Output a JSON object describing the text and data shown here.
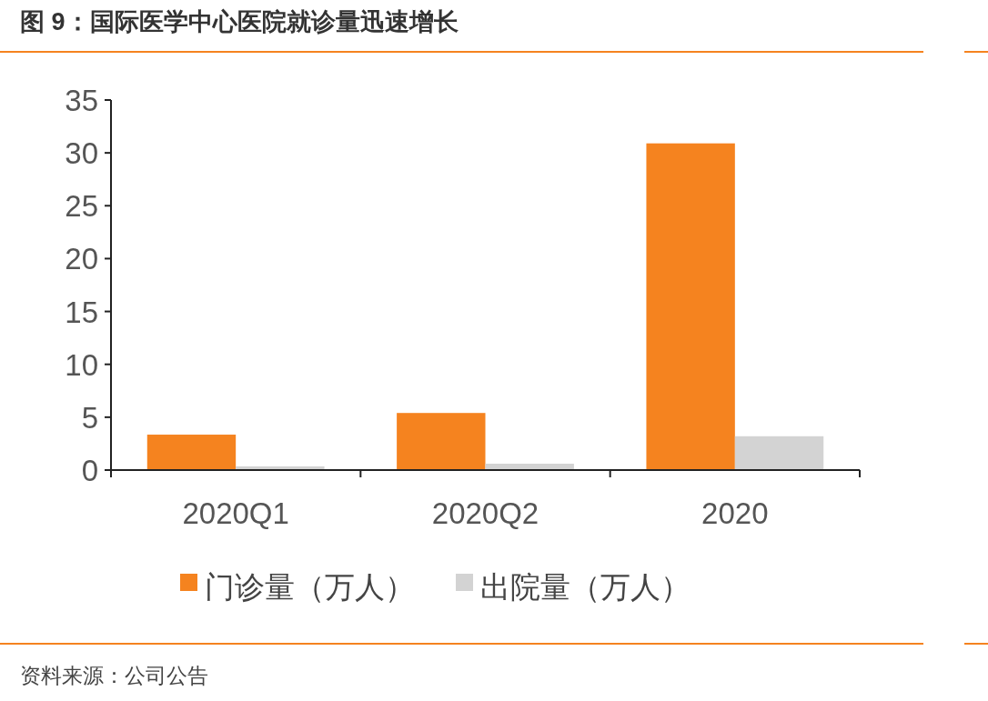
{
  "chart_data": {
    "type": "bar",
    "title": "图 9：国际医学中心医院就诊量迅速增长",
    "categories": [
      "2020Q1",
      "2020Q2",
      "2020"
    ],
    "series": [
      {
        "name": "门诊量（万人）",
        "color": "#f5831f",
        "values": [
          3.35,
          5.4,
          30.9
        ]
      },
      {
        "name": "出院量（万人）",
        "color": "#d3d3d3",
        "values": [
          0.35,
          0.6,
          3.2
        ]
      }
    ],
    "ylim": [
      0,
      35
    ],
    "yticks": [
      0,
      5,
      10,
      15,
      20,
      25,
      30,
      35
    ],
    "grid": false,
    "legend": "bottom",
    "annotations": [
      "资料来源：公司公告"
    ]
  }
}
